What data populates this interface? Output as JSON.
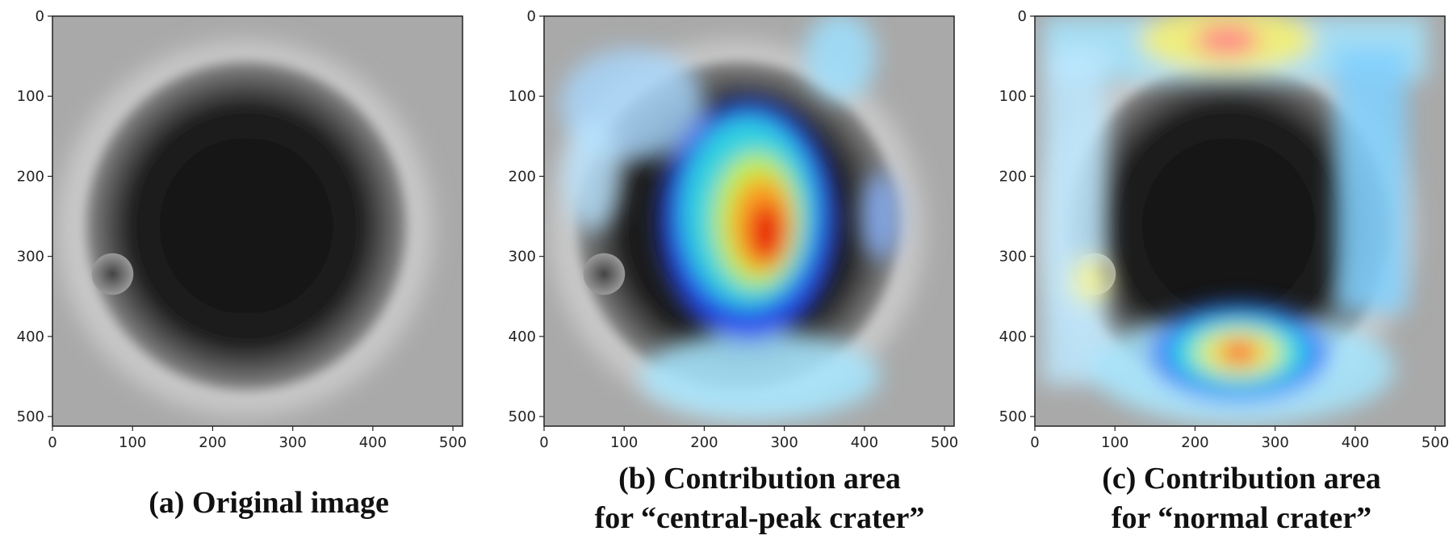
{
  "panels": [
    {
      "caption": [
        "(a) Original image"
      ],
      "xlim": [
        0,
        512
      ],
      "ylim": [
        512,
        0
      ],
      "xticks": [
        0,
        100,
        200,
        300,
        400,
        500
      ],
      "yticks": [
        0,
        100,
        200,
        300,
        400,
        500
      ]
    },
    {
      "caption": [
        "(b) Contribution area",
        "for “central-peak crater”"
      ],
      "xlim": [
        0,
        512
      ],
      "ylim": [
        512,
        0
      ],
      "xticks": [
        0,
        100,
        200,
        300,
        400,
        500
      ],
      "yticks": [
        0,
        100,
        200,
        300,
        400,
        500
      ]
    },
    {
      "caption": [
        "(c) Contribution area",
        "for “normal crater”"
      ],
      "xlim": [
        0,
        512
      ],
      "ylim": [
        512,
        0
      ],
      "xticks": [
        0,
        100,
        200,
        300,
        400,
        500
      ],
      "yticks": [
        0,
        100,
        200,
        300,
        400,
        500
      ]
    }
  ]
}
